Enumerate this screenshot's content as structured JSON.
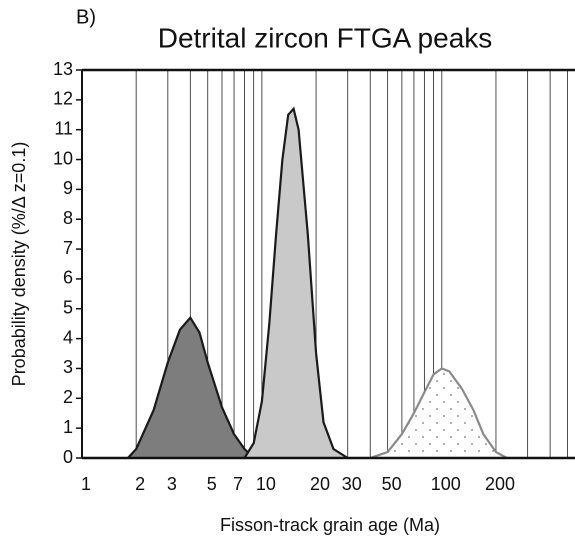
{
  "chart_data": {
    "type": "area",
    "panel_label": "B)",
    "title": "Detrital zircon FTGA peaks",
    "x_label": "Fisson-track grain age (Ma)",
    "y_label": "Probability density (%/Δ z=0.1)",
    "xscale": "log",
    "xlim": [
      1,
      550
    ],
    "ylim": [
      0,
      13
    ],
    "xticks": [
      1,
      2,
      3,
      5,
      7,
      10,
      20,
      30,
      50,
      100,
      200
    ],
    "xgrid": [
      2,
      3,
      4,
      5,
      6,
      7,
      8,
      9,
      10,
      20,
      30,
      40,
      50,
      60,
      70,
      80,
      90,
      100,
      200,
      300,
      400,
      500
    ],
    "yticks": [
      0,
      1,
      2,
      3,
      4,
      5,
      6,
      7,
      8,
      9,
      10,
      11,
      12,
      13
    ],
    "series": [
      {
        "color": "#7d7d7d",
        "stroke": "#1a1a1a",
        "x": [
          1.8,
          2,
          2.5,
          3,
          3.5,
          4,
          4.5,
          5,
          6,
          7,
          8,
          9
        ],
        "values": [
          0,
          0.3,
          1.6,
          3.2,
          4.3,
          4.7,
          4.2,
          3.2,
          1.7,
          0.8,
          0.3,
          0
        ]
      },
      {
        "color": "#c9c9c9",
        "stroke": "#1a1a1a",
        "x": [
          8,
          9,
          10,
          11,
          12,
          13,
          14,
          15,
          16,
          18,
          20,
          22,
          25,
          30
        ],
        "values": [
          0,
          0.5,
          1.9,
          4.5,
          7.5,
          10,
          11.5,
          11.7,
          11,
          7.5,
          3.5,
          1.2,
          0.3,
          0
        ]
      },
      {
        "color": "url(#dots)",
        "stroke": "#8a8a8a",
        "x": [
          40,
          50,
          60,
          70,
          80,
          90,
          100,
          110,
          130,
          150,
          170,
          200,
          230
        ],
        "values": [
          0,
          0.2,
          0.8,
          1.5,
          2.2,
          2.8,
          3.0,
          2.9,
          2.3,
          1.6,
          0.8,
          0.2,
          0
        ]
      }
    ]
  }
}
